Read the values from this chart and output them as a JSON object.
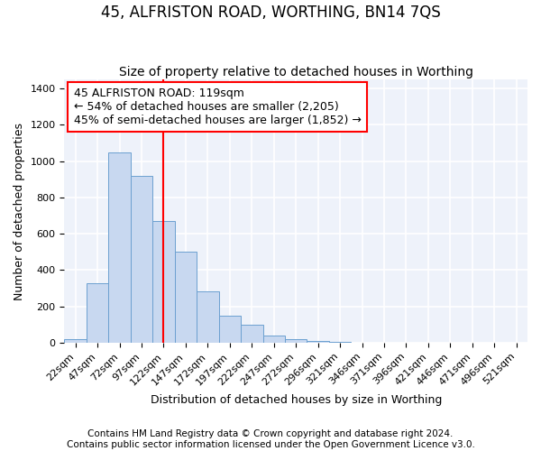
{
  "title": "45, ALFRISTON ROAD, WORTHING, BN14 7QS",
  "subtitle": "Size of property relative to detached houses in Worthing",
  "xlabel": "Distribution of detached houses by size in Worthing",
  "ylabel": "Number of detached properties",
  "bar_labels": [
    "22sqm",
    "47sqm",
    "72sqm",
    "97sqm",
    "122sqm",
    "147sqm",
    "172sqm",
    "197sqm",
    "222sqm",
    "247sqm",
    "272sqm",
    "296sqm",
    "321sqm",
    "346sqm",
    "371sqm",
    "396sqm",
    "421sqm",
    "446sqm",
    "471sqm",
    "496sqm",
    "521sqm"
  ],
  "bar_values": [
    20,
    330,
    1050,
    920,
    670,
    500,
    285,
    150,
    100,
    40,
    20,
    10,
    5,
    2,
    1,
    1,
    0,
    0,
    0,
    0,
    0
  ],
  "bar_color": "#c8d8f0",
  "bar_edge_color": "#6ca0d0",
  "bar_width": 1.0,
  "vline_x": 4.0,
  "vline_color": "red",
  "annotation_line1": "45 ALFRISTON ROAD: 119sqm",
  "annotation_line2": "← 54% of detached houses are smaller (2,205)",
  "annotation_line3": "45% of semi-detached houses are larger (1,852) →",
  "annotation_box_color": "white",
  "annotation_box_edge_color": "red",
  "ylim": [
    0,
    1450
  ],
  "yticks": [
    0,
    200,
    400,
    600,
    800,
    1000,
    1200,
    1400
  ],
  "bg_color": "#eef2fa",
  "grid_color": "white",
  "footer_text": "Contains HM Land Registry data © Crown copyright and database right 2024.\nContains public sector information licensed under the Open Government Licence v3.0.",
  "title_fontsize": 12,
  "subtitle_fontsize": 10,
  "xlabel_fontsize": 9,
  "ylabel_fontsize": 9,
  "tick_fontsize": 8,
  "annotation_fontsize": 9,
  "footer_fontsize": 7.5
}
